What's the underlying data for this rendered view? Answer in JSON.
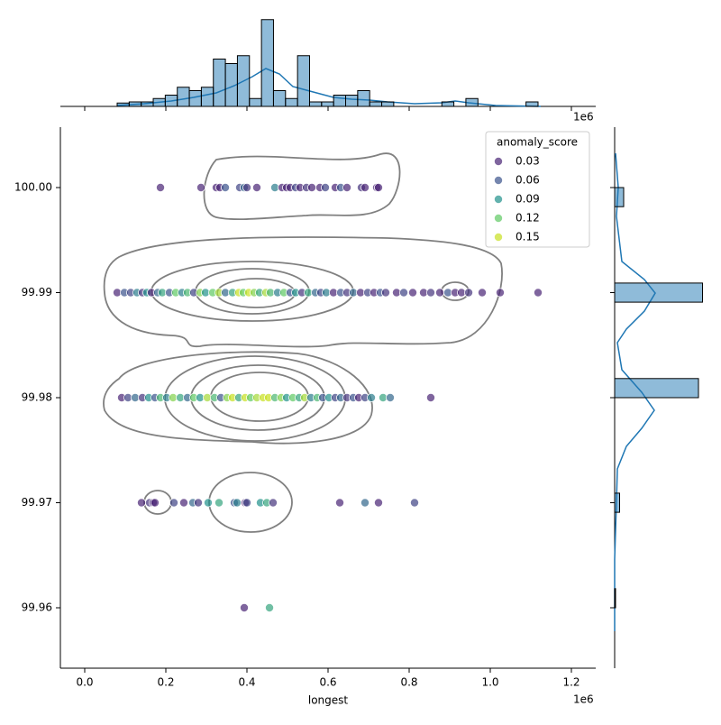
{
  "chart_data": {
    "type": "scatter",
    "x_label": "longest",
    "x_offset_label": "1e6",
    "xlim": [
      -60000,
      1260000
    ],
    "ylim": [
      99.95425,
      100.00575
    ],
    "xticks": [
      {
        "value": 0,
        "label": "0.0"
      },
      {
        "value": 200000,
        "label": "0.2"
      },
      {
        "value": 400000,
        "label": "0.4"
      },
      {
        "value": 600000,
        "label": "0.6"
      },
      {
        "value": 800000,
        "label": "0.8"
      },
      {
        "value": 1000000,
        "label": "1.0"
      },
      {
        "value": 1200000,
        "label": "1.2"
      }
    ],
    "yticks": [
      99.96,
      99.97,
      99.98,
      99.99,
      {
        "value": 100.0,
        "label": "100.00"
      }
    ],
    "rows": [
      {
        "y": 100.0,
        "x": [
          186700,
          286700,
          324400,
          333300,
          346700,
          382200,
          393300,
          400000,
          424400,
          468900,
          486700,
          497800,
          506700,
          520000,
          531100,
          546700,
          560000,
          580000,
          593300,
          617800,
          631100,
          646700,
          682200,
          691100,
          720000,
          724400
        ],
        "anomaly_score": [
          0.03,
          0.02,
          0.03,
          0.01,
          0.06,
          0.05,
          0.07,
          0.04,
          0.02,
          0.08,
          0.03,
          0.01,
          0.02,
          0.05,
          0.02,
          0.04,
          0.01,
          0.03,
          0.05,
          0.02,
          0.06,
          0.01,
          0.04,
          0.03,
          0.01,
          0.02
        ]
      },
      {
        "y": 99.99,
        "x": [
          80000,
          97800,
          113300,
          128900,
          142200,
          153300,
          164400,
          180000,
          191100,
          208900,
          224400,
          240000,
          253300,
          268900,
          284400,
          297800,
          315600,
          331100,
          346700,
          364400,
          380000,
          391100,
          404400,
          417800,
          431100,
          446700,
          457800,
          475600,
          491100,
          506700,
          520000,
          535600,
          551100,
          568900,
          582200,
          595600,
          613300,
          631100,
          646700,
          662200,
          680000,
          697800,
          713300,
          728900,
          742200,
          768900,
          786700,
          808900,
          835600,
          853300,
          875600,
          895600,
          913300,
          928900,
          946700,
          980000,
          1024400,
          1117800
        ],
        "anomaly_score": [
          0.03,
          0.06,
          0.05,
          0.08,
          0.04,
          0.09,
          0.03,
          0.07,
          0.1,
          0.06,
          0.12,
          0.08,
          0.11,
          0.05,
          0.13,
          0.09,
          0.12,
          0.14,
          0.07,
          0.1,
          0.16,
          0.12,
          0.15,
          0.13,
          0.1,
          0.14,
          0.11,
          0.08,
          0.12,
          0.06,
          0.09,
          0.04,
          0.1,
          0.07,
          0.05,
          0.08,
          0.03,
          0.06,
          0.04,
          0.07,
          0.02,
          0.05,
          0.03,
          0.06,
          0.04,
          0.02,
          0.05,
          0.03,
          0.01,
          0.04,
          0.02,
          0.06,
          0.03,
          0.01,
          0.04,
          0.02,
          0.01,
          0.02
        ]
      },
      {
        "y": 99.98,
        "x": [
          91100,
          106700,
          124400,
          142200,
          157800,
          173300,
          186700,
          202200,
          217800,
          235600,
          253300,
          268900,
          284400,
          302200,
          320000,
          335600,
          351100,
          364400,
          380000,
          395600,
          408900,
          424400,
          440000,
          453300,
          468900,
          484400,
          497800,
          513300,
          528900,
          542200,
          557800,
          573300,
          586700,
          602200,
          617800,
          631100,
          646700,
          662200,
          675600,
          691100,
          706700,
          735600,
          753300,
          853300
        ],
        "anomaly_score": [
          0.03,
          0.05,
          0.07,
          0.04,
          0.09,
          0.06,
          0.11,
          0.08,
          0.13,
          0.1,
          0.07,
          0.12,
          0.09,
          0.14,
          0.11,
          0.06,
          0.13,
          0.15,
          0.1,
          0.16,
          0.12,
          0.14,
          0.16,
          0.15,
          0.11,
          0.13,
          0.09,
          0.12,
          0.1,
          0.14,
          0.08,
          0.11,
          0.06,
          0.09,
          0.05,
          0.07,
          0.04,
          0.06,
          0.03,
          0.05,
          0.08,
          0.1,
          0.07,
          0.02
        ]
      },
      {
        "y": 99.97,
        "x": [
          140000,
          160000,
          168900,
          173300,
          220000,
          244400,
          266700,
          280000,
          304400,
          331100,
          368900,
          375600,
          395600,
          400000,
          433300,
          448900,
          464400,
          628900,
          691100,
          724400,
          813300
        ],
        "anomaly_score": [
          0.02,
          0.04,
          0.01,
          0.03,
          0.05,
          0.02,
          0.07,
          0.04,
          0.09,
          0.1,
          0.06,
          0.08,
          0.03,
          0.05,
          0.09,
          0.1,
          0.04,
          0.03,
          0.07,
          0.02,
          0.05
        ]
      },
      {
        "y": 99.96,
        "x": [
          393300,
          455600
        ],
        "anomaly_score": [
          0.02,
          0.1
        ]
      }
    ],
    "legend": {
      "title": "anomaly_score",
      "corner": "upper right",
      "entries": [
        {
          "value": 0.03,
          "color": "#482475"
        },
        {
          "value": 0.06,
          "color": "#3b528b"
        },
        {
          "value": 0.09,
          "color": "#21918c"
        },
        {
          "value": 0.12,
          "color": "#5ec962"
        },
        {
          "value": 0.15,
          "color": "#c8e020"
        }
      ]
    },
    "top_histogram": {
      "color": "#1f77b4",
      "ylim": [
        0,
        80
      ],
      "bins": [
        80000,
        109650,
        139300,
        168950,
        198600,
        228250,
        257900,
        287550,
        317200,
        346850,
        376500,
        406150,
        435800,
        465450,
        495100,
        524750,
        554400,
        584050,
        613700,
        643350,
        673000,
        702650,
        732300,
        761950,
        791600,
        821250,
        850900,
        880550,
        910200,
        939850,
        969500,
        999150,
        1028800,
        1058450,
        1088100,
        1117750
      ],
      "counts": [
        3,
        4,
        4,
        7,
        10,
        17,
        14,
        17,
        42,
        38,
        45,
        7,
        77,
        14,
        7,
        45,
        4,
        4,
        10,
        10,
        14,
        4,
        4,
        0,
        0,
        0,
        0,
        4,
        0,
        7,
        0,
        0,
        0,
        0,
        4
      ]
    },
    "right_histogram": {
      "color": "#1f77b4",
      "xlim": [
        0,
        200
      ],
      "bins": [
        99.96,
        99.96182,
        99.96364,
        99.96545,
        99.96727,
        99.96909,
        99.97091,
        99.97273,
        99.97455,
        99.97636,
        99.97818,
        99.98,
        99.98182,
        99.98364,
        99.98545,
        99.98727,
        99.98909,
        99.99091,
        99.99273,
        99.99455,
        99.99636,
        99.99818,
        100.0
      ],
      "counts": [
        2,
        0,
        0,
        0,
        0,
        11,
        0,
        0,
        0,
        0,
        0,
        186,
        0,
        0,
        0,
        0,
        195,
        0,
        0,
        0,
        0,
        20
      ]
    }
  }
}
